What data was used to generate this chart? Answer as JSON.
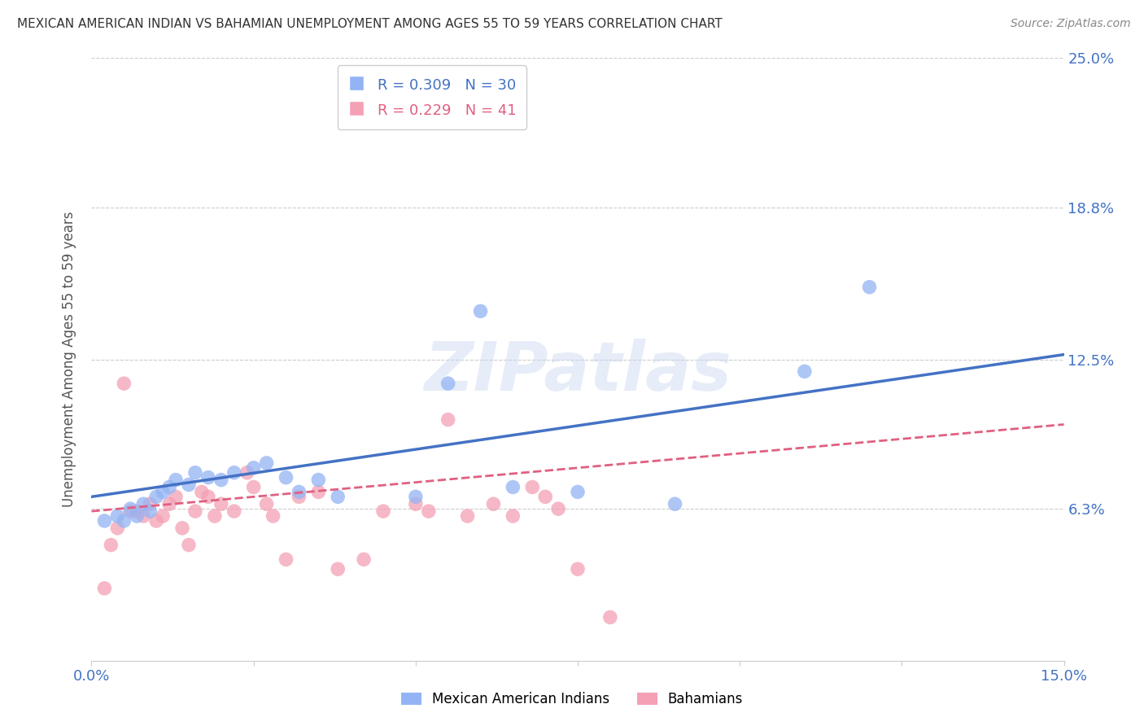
{
  "title": "MEXICAN AMERICAN INDIAN VS BAHAMIAN UNEMPLOYMENT AMONG AGES 55 TO 59 YEARS CORRELATION CHART",
  "source": "Source: ZipAtlas.com",
  "ylabel": "Unemployment Among Ages 55 to 59 years",
  "xlim": [
    0.0,
    0.15
  ],
  "ylim": [
    0.0,
    0.25
  ],
  "ytick_vals": [
    0.063,
    0.125,
    0.188,
    0.25
  ],
  "ytick_labels": [
    "6.3%",
    "12.5%",
    "18.8%",
    "25.0%"
  ],
  "xtick_vals": [
    0.0,
    0.025,
    0.05,
    0.075,
    0.1,
    0.125,
    0.15
  ],
  "xtick_labels": [
    "0.0%",
    "",
    "",
    "",
    "",
    "",
    "15.0%"
  ],
  "blue_R": "0.309",
  "blue_N": "30",
  "pink_R": "0.229",
  "pink_N": "41",
  "blue_color": "#92B4F4",
  "pink_color": "#F4A0B5",
  "line_blue": "#4472C4",
  "line_pink": "#E06080",
  "text_blue": "#4472C4",
  "legend_label_blue": "Mexican American Indians",
  "legend_label_pink": "Bahamians",
  "watermark_text": "ZIPatlas",
  "blue_scatter_x": [
    0.002,
    0.004,
    0.005,
    0.006,
    0.007,
    0.008,
    0.009,
    0.01,
    0.011,
    0.012,
    0.013,
    0.015,
    0.016,
    0.018,
    0.02,
    0.022,
    0.025,
    0.027,
    0.03,
    0.032,
    0.035,
    0.038,
    0.05,
    0.055,
    0.06,
    0.065,
    0.075,
    0.09,
    0.11,
    0.12
  ],
  "blue_scatter_y": [
    0.058,
    0.06,
    0.058,
    0.063,
    0.06,
    0.065,
    0.062,
    0.068,
    0.07,
    0.072,
    0.075,
    0.073,
    0.078,
    0.076,
    0.075,
    0.078,
    0.08,
    0.082,
    0.076,
    0.07,
    0.075,
    0.068,
    0.068,
    0.115,
    0.145,
    0.072,
    0.07,
    0.065,
    0.12,
    0.155
  ],
  "pink_scatter_x": [
    0.002,
    0.003,
    0.004,
    0.005,
    0.006,
    0.007,
    0.008,
    0.009,
    0.01,
    0.011,
    0.012,
    0.013,
    0.014,
    0.015,
    0.016,
    0.017,
    0.018,
    0.019,
    0.02,
    0.022,
    0.024,
    0.025,
    0.027,
    0.028,
    0.03,
    0.032,
    0.035,
    0.038,
    0.042,
    0.045,
    0.05,
    0.052,
    0.055,
    0.058,
    0.062,
    0.065,
    0.068,
    0.07,
    0.072,
    0.075,
    0.08
  ],
  "pink_scatter_y": [
    0.03,
    0.048,
    0.055,
    0.115,
    0.062,
    0.062,
    0.06,
    0.065,
    0.058,
    0.06,
    0.065,
    0.068,
    0.055,
    0.048,
    0.062,
    0.07,
    0.068,
    0.06,
    0.065,
    0.062,
    0.078,
    0.072,
    0.065,
    0.06,
    0.042,
    0.068,
    0.07,
    0.038,
    0.042,
    0.062,
    0.065,
    0.062,
    0.1,
    0.06,
    0.065,
    0.06,
    0.072,
    0.068,
    0.063,
    0.038,
    0.018
  ],
  "blue_line_y_start": 0.068,
  "blue_line_y_end": 0.127,
  "pink_line_y_start": 0.062,
  "pink_line_y_end": 0.098,
  "background_color": "#FFFFFF",
  "grid_color": "#CCCCCC",
  "axis_tick_color": "#4472C4"
}
